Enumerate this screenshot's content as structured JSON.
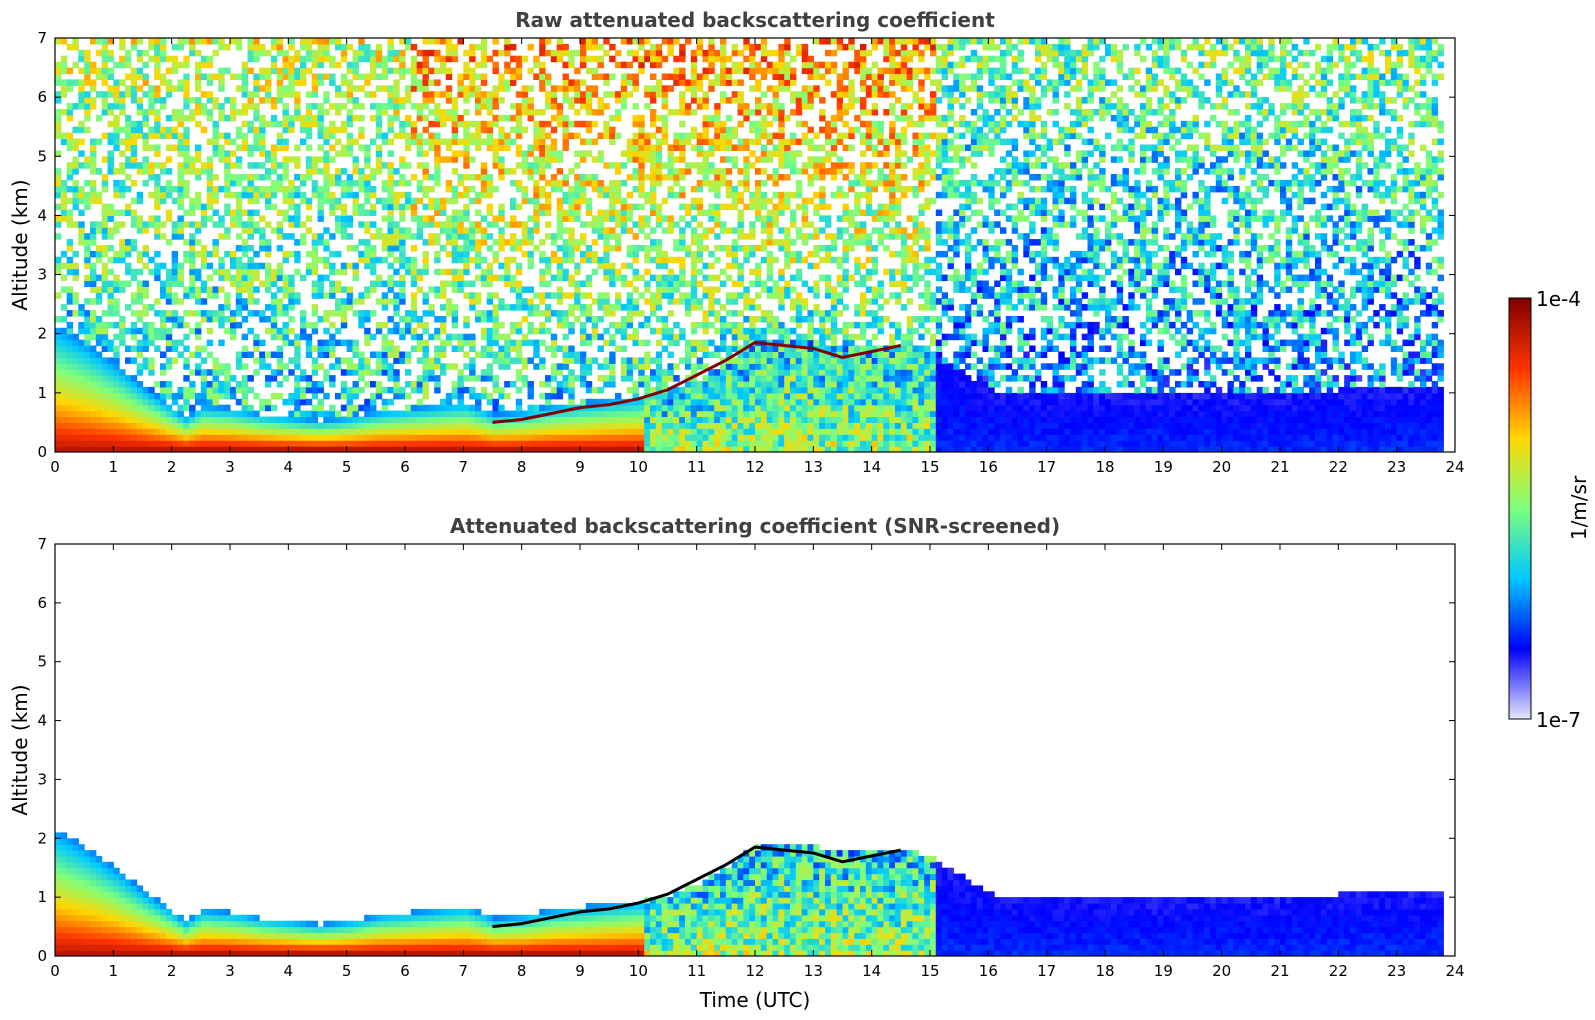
{
  "chart_data": [
    {
      "type": "heatmap",
      "title": "Raw attenuated backscattering coefficient",
      "xlabel": "",
      "ylabel": "Altitude (km)",
      "xlim": [
        0,
        24
      ],
      "ylim": [
        0,
        7
      ],
      "xticks": [
        "0",
        "1",
        "2",
        "3",
        "4",
        "5",
        "6",
        "7",
        "8",
        "9",
        "10",
        "11",
        "12",
        "13",
        "14",
        "15",
        "16",
        "17",
        "18",
        "19",
        "20",
        "21",
        "22",
        "23",
        "24"
      ],
      "yticks": [
        "0",
        "1",
        "2",
        "3",
        "4",
        "5",
        "6",
        "7"
      ],
      "data_end_hour": 23.8,
      "boundary_layer_top_km": {
        "hours": [
          0,
          0.5,
          1,
          1.5,
          2,
          2.2,
          2.5,
          3,
          3.5,
          4,
          4.5,
          5,
          5.5,
          6,
          6.5,
          7,
          7.5,
          8,
          8.5,
          9,
          9.5,
          10,
          10.5,
          11,
          11.5,
          12,
          12.5,
          13,
          13.5,
          14,
          14.5,
          15,
          16,
          17,
          18,
          19,
          20,
          21,
          22,
          23,
          23.8
        ],
        "km": [
          2.1,
          1.8,
          1.45,
          1.05,
          0.7,
          0.55,
          0.75,
          0.7,
          0.6,
          0.55,
          0.5,
          0.55,
          0.65,
          0.7,
          0.75,
          0.8,
          0.6,
          0.65,
          0.75,
          0.8,
          0.85,
          0.9,
          1.0,
          1.2,
          1.5,
          1.85,
          1.85,
          1.8,
          1.7,
          1.75,
          1.8,
          1.6,
          1.0,
          0.9,
          0.9,
          0.9,
          0.9,
          0.9,
          1.0,
          1.0,
          1.0
        ]
      },
      "cloud_layer": {
        "hours": [
          7.5,
          8,
          8.5,
          9,
          9.5,
          10,
          10.5,
          11,
          11.5,
          12,
          12.5,
          13,
          13.5,
          14,
          14.5
        ],
        "km": [
          0.5,
          0.55,
          0.65,
          0.75,
          0.8,
          0.9,
          1.05,
          1.3,
          1.55,
          1.85,
          1.8,
          1.75,
          1.6,
          1.7,
          1.8
        ]
      }
    },
    {
      "type": "heatmap",
      "title": "Attenuated backscattering coefficient (SNR-screened)",
      "xlabel": "Time (UTC)",
      "ylabel": "Altitude (km)",
      "xlim": [
        0,
        24
      ],
      "ylim": [
        0,
        7
      ],
      "xticks": [
        "0",
        "1",
        "2",
        "3",
        "4",
        "5",
        "6",
        "7",
        "8",
        "9",
        "10",
        "11",
        "12",
        "13",
        "14",
        "15",
        "16",
        "17",
        "18",
        "19",
        "20",
        "21",
        "22",
        "23",
        "24"
      ],
      "yticks": [
        "0",
        "1",
        "2",
        "3",
        "4",
        "5",
        "6",
        "7"
      ],
      "data_end_hour": 23.8
    }
  ],
  "colorbar": {
    "label": "1/m/sr",
    "max_label": "1e-4",
    "min_label": "1e-7",
    "colors": [
      "#e6e6fa",
      "#0000ff",
      "#00c8ff",
      "#7dff7d",
      "#ffd700",
      "#ff3300",
      "#7f0000"
    ]
  },
  "colors": {
    "title": "#404040",
    "low": "#0000ff",
    "high": "#7f0000"
  }
}
